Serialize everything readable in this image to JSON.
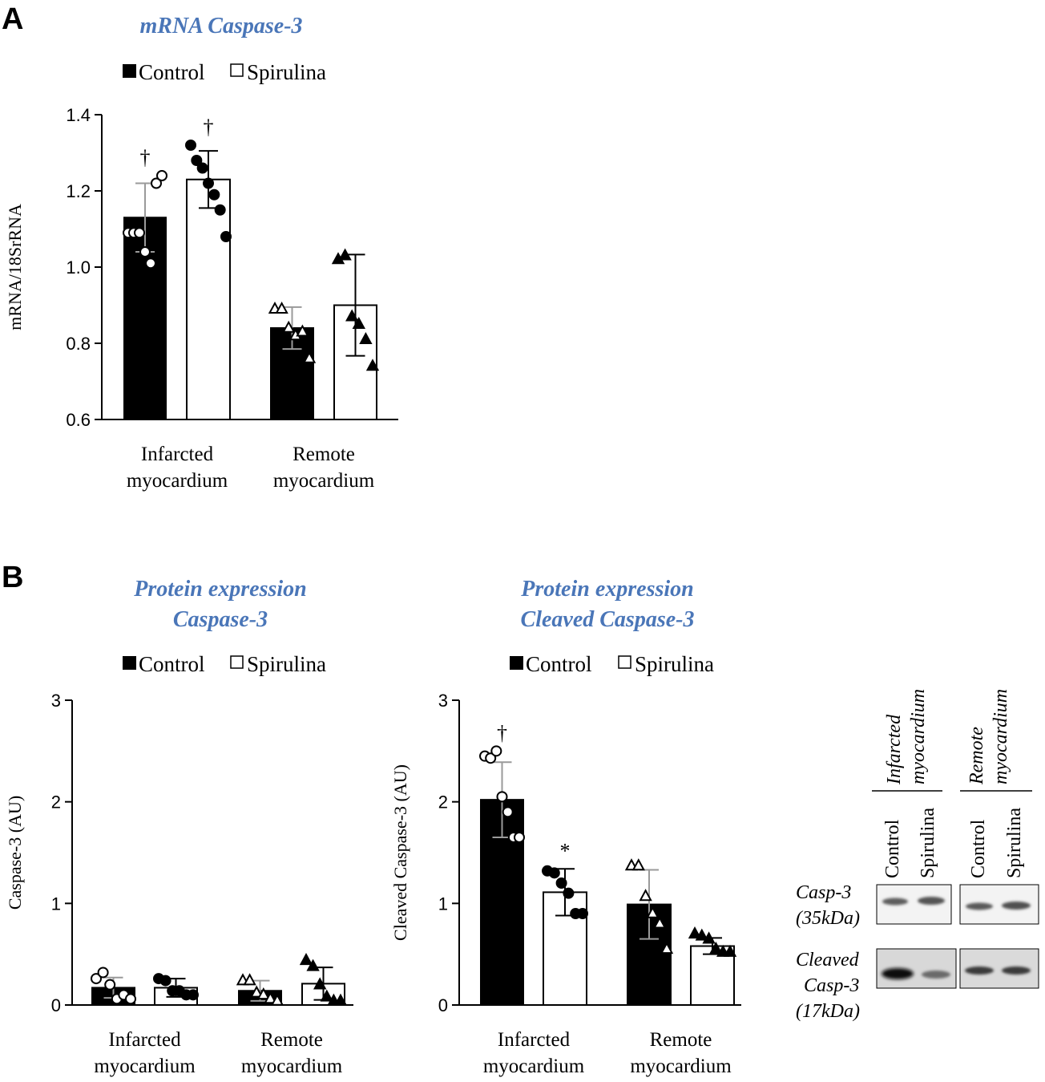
{
  "panel_labels": [
    "A",
    "B"
  ],
  "colors": {
    "title": "#4a76b8",
    "control": "#000000",
    "spirulina": "#ffffff",
    "error_gray": "#9a9a9a"
  },
  "legend": {
    "control": "Control",
    "spirulina": "Spirulina"
  },
  "chart_data": [
    {
      "type": "bar",
      "title": "mRNA Caspase-3",
      "ylabel": "mRNA/18SrRNA",
      "ylim": [
        0.6,
        1.4
      ],
      "yticks": [
        "0.6",
        "0.8",
        "1.0",
        "1.2",
        "1.4"
      ],
      "categories": [
        "Infarcted myocardium",
        "Remote myocardium"
      ],
      "category_lines": [
        [
          "Infarcted",
          "myocardium"
        ],
        [
          "Remote",
          "myocardium"
        ]
      ],
      "series": [
        {
          "name": "Control",
          "values": [
            1.13,
            0.84
          ],
          "errors": [
            0.09,
            0.055
          ],
          "points": [
            [
              1.09,
              1.09,
              1.09,
              1.04,
              1.01,
              1.22,
              1.24
            ],
            [
              0.89,
              0.89,
              0.84,
              0.82,
              0.83,
              0.76
            ]
          ],
          "markers": [
            "circle-open",
            "triangle-open"
          ],
          "significance": [
            "†",
            ""
          ]
        },
        {
          "name": "Spirulina",
          "values": [
            1.23,
            0.9
          ],
          "errors": [
            0.075,
            0.133
          ],
          "points": [
            [
              1.32,
              1.28,
              1.26,
              1.22,
              1.19,
              1.15,
              1.08
            ],
            [
              1.02,
              1.03,
              0.87,
              0.85,
              0.81,
              0.74
            ]
          ],
          "markers": [
            "circle-filled",
            "triangle-filled"
          ],
          "significance": [
            "†",
            ""
          ]
        }
      ]
    },
    {
      "type": "bar",
      "title": "Protein expression Caspase-3",
      "title_lines": [
        "Protein expression",
        "Caspase-3"
      ],
      "ylabel": "Caspase-3 (AU)",
      "ylim": [
        0,
        3
      ],
      "yticks": [
        "0",
        "1",
        "2",
        "3"
      ],
      "categories": [
        "Infarcted myocardium",
        "Remote myocardium"
      ],
      "category_lines": [
        [
          "Infarcted",
          "myocardium"
        ],
        [
          "Remote",
          "myocardium"
        ]
      ],
      "series": [
        {
          "name": "Control",
          "values": [
            0.17,
            0.14
          ],
          "errors": [
            0.1,
            0.1
          ],
          "points": [
            [
              0.26,
              0.32,
              0.2,
              0.06,
              0.1,
              0.06
            ],
            [
              0.24,
              0.24,
              0.12,
              0.1,
              0.06,
              0.04
            ]
          ],
          "markers": [
            "circle-open",
            "triangle-open"
          ],
          "significance": [
            "",
            ""
          ]
        },
        {
          "name": "Spirulina",
          "values": [
            0.17,
            0.21
          ],
          "errors": [
            0.09,
            0.16
          ],
          "points": [
            [
              0.26,
              0.24,
              0.14,
              0.14,
              0.1,
              0.1
            ],
            [
              0.44,
              0.38,
              0.2,
              0.08,
              0.04,
              0.04
            ]
          ],
          "markers": [
            "circle-filled",
            "triangle-filled"
          ],
          "significance": [
            "",
            ""
          ]
        }
      ]
    },
    {
      "type": "bar",
      "title": "Protein expression Cleaved Caspase-3",
      "title_lines": [
        "Protein expression",
        "Cleaved Caspase-3"
      ],
      "ylabel": "Cleaved Caspase-3 (AU)",
      "ylim": [
        0,
        3
      ],
      "yticks": [
        "0",
        "1",
        "2",
        "3"
      ],
      "categories": [
        "Infarcted myocardium",
        "Remote myocardium"
      ],
      "category_lines": [
        [
          "Infarcted",
          "myocardium"
        ],
        [
          "Remote",
          "myocardium"
        ]
      ],
      "series": [
        {
          "name": "Control",
          "values": [
            2.02,
            0.99
          ],
          "errors": [
            0.37,
            0.34
          ],
          "points": [
            [
              2.45,
              2.43,
              2.5,
              2.05,
              1.9,
              1.65,
              1.65
            ],
            [
              1.37,
              1.37,
              1.07,
              0.9,
              0.8,
              0.55
            ]
          ],
          "markers": [
            "circle-open",
            "triangle-open"
          ],
          "significance": [
            "†",
            ""
          ]
        },
        {
          "name": "Spirulina",
          "values": [
            1.11,
            0.58
          ],
          "errors": [
            0.23,
            0.08
          ],
          "points": [
            [
              1.32,
              1.3,
              1.2,
              1.1,
              0.9,
              0.9
            ],
            [
              0.7,
              0.68,
              0.65,
              0.55,
              0.52,
              0.52
            ]
          ],
          "markers": [
            "circle-filled",
            "triangle-filled"
          ],
          "significance": [
            "*",
            ""
          ]
        }
      ]
    }
  ],
  "blot": {
    "groups": [
      {
        "label": [
          "Infarcted",
          "myocardium"
        ],
        "lanes": [
          "Control",
          "Spirulina"
        ]
      },
      {
        "label": [
          "Remote",
          "myocardium"
        ],
        "lanes": [
          "Control",
          "Spirulina"
        ]
      }
    ],
    "rows": [
      {
        "label": [
          "Casp-3",
          "(35kDa)"
        ]
      },
      {
        "label": [
          "Cleaved",
          "Casp-3",
          "(17kDa)"
        ]
      }
    ]
  }
}
